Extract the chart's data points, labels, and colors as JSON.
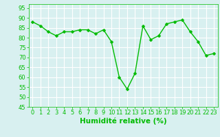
{
  "x": [
    0,
    1,
    2,
    3,
    4,
    5,
    6,
    7,
    8,
    9,
    10,
    11,
    12,
    13,
    14,
    15,
    16,
    17,
    18,
    19,
    20,
    21,
    22,
    23
  ],
  "y": [
    88,
    86,
    83,
    81,
    83,
    83,
    84,
    84,
    82,
    84,
    78,
    60,
    54,
    62,
    86,
    79,
    81,
    87,
    88,
    89,
    83,
    78,
    71,
    72
  ],
  "line_color": "#00bb00",
  "marker": "D",
  "marker_size": 2.5,
  "bg_color": "#d8f0f0",
  "grid_color": "#ffffff",
  "xlabel": "Humidité relative (%)",
  "xlabel_color": "#00bb00",
  "xlabel_fontsize": 7.5,
  "tick_color": "#00bb00",
  "tick_fontsize": 6,
  "ylim": [
    45,
    97
  ],
  "xlim": [
    -0.5,
    23.5
  ],
  "yticks": [
    45,
    50,
    55,
    60,
    65,
    70,
    75,
    80,
    85,
    90,
    95
  ],
  "xticks": [
    0,
    1,
    2,
    3,
    4,
    5,
    6,
    7,
    8,
    9,
    10,
    11,
    12,
    13,
    14,
    15,
    16,
    17,
    18,
    19,
    20,
    21,
    22,
    23
  ]
}
